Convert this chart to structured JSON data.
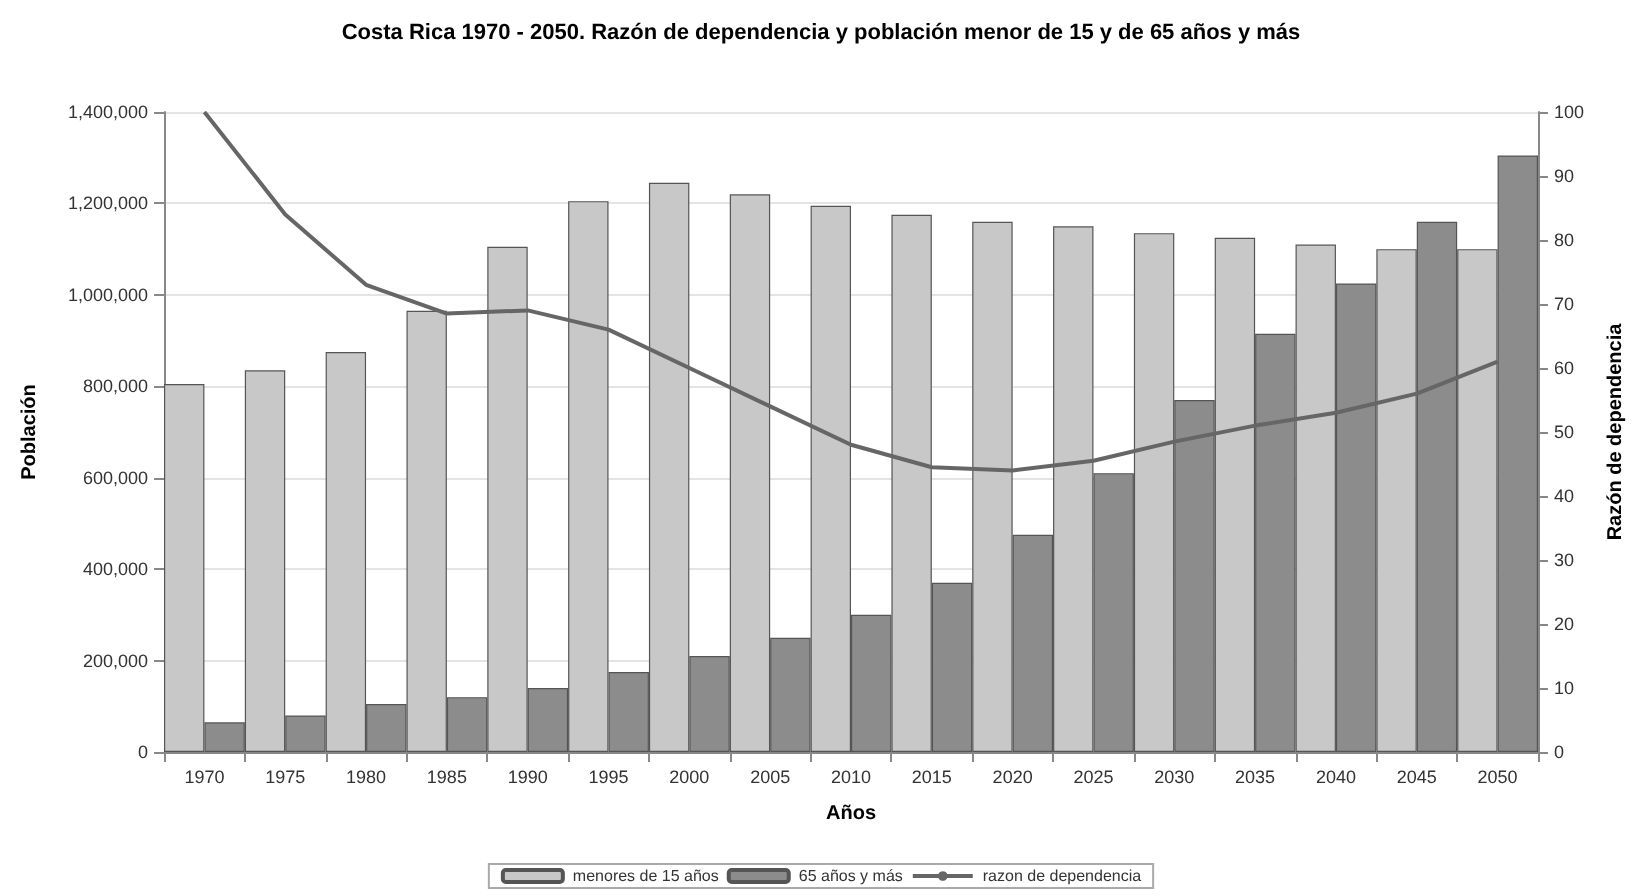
{
  "chart_data": {
    "type": "bar",
    "title": "Costa Rica 1970 - 2050. Razón de dependencia y población menor de 15 y de 65 años y más",
    "xlabel": "Años",
    "ylabel": "Población",
    "y2label": "Razón de dependencia",
    "categories": [
      "1970",
      "1975",
      "1980",
      "1985",
      "1990",
      "1995",
      "2000",
      "2005",
      "2010",
      "2015",
      "2020",
      "2025",
      "2030",
      "2035",
      "2040",
      "2045",
      "2050"
    ],
    "series": [
      {
        "name": "menores de 15 años",
        "color": "#c8c8c8",
        "values": [
          805000,
          835000,
          875000,
          965000,
          1105000,
          1205000,
          1245000,
          1220000,
          1195000,
          1175000,
          1160000,
          1150000,
          1135000,
          1125000,
          1110000,
          1100000,
          1100000
        ]
      },
      {
        "name": "65 años y más",
        "color": "#8c8c8c",
        "values": [
          65000,
          80000,
          105000,
          120000,
          140000,
          175000,
          210000,
          250000,
          300000,
          370000,
          475000,
          610000,
          770000,
          915000,
          1025000,
          1160000,
          1305000
        ]
      },
      {
        "name": "razon de dependencia",
        "type": "line",
        "axis": "y2",
        "color": "#666666",
        "values": [
          100,
          84,
          73,
          68.5,
          69,
          66,
          60,
          54,
          48,
          44.5,
          44,
          45.5,
          48.5,
          51,
          53,
          56,
          61
        ]
      }
    ],
    "ylim": [
      0,
      1400000
    ],
    "yticks": [
      0,
      {
        "value": 200000,
        "label": "200,000"
      },
      {
        "value": 400000,
        "label": "400,000"
      },
      {
        "value": 600000,
        "label": "600,000"
      },
      {
        "value": 800000,
        "label": "800,000"
      },
      {
        "value": 1000000,
        "label": "1,000,000"
      },
      {
        "value": 1200000,
        "label": "1,200,000"
      },
      {
        "value": 1400000,
        "label": "1,400,000"
      }
    ],
    "y2lim": [
      0,
      100
    ],
    "y2ticks": [
      0,
      10,
      20,
      30,
      40,
      50,
      60,
      70,
      80,
      90,
      100
    ],
    "grid": "y",
    "legend": "bottom",
    "marker": "none",
    "line_style": "solid"
  }
}
